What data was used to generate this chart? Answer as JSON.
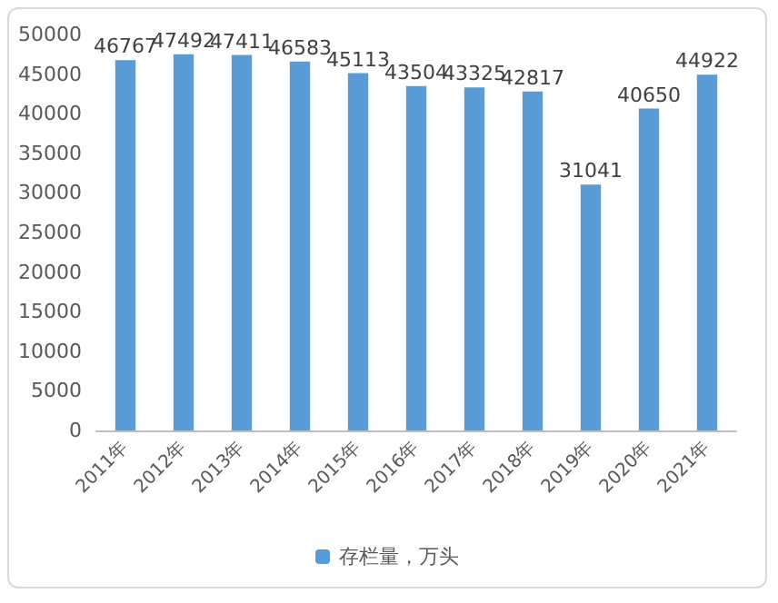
{
  "chart_data": {
    "type": "bar",
    "categories": [
      "2011年",
      "2012年",
      "2013年",
      "2014年",
      "2015年",
      "2016年",
      "2017年",
      "2018年",
      "2019年",
      "2020年",
      "2021年"
    ],
    "series": [
      {
        "name": "存栏量，万头",
        "color": "#5b9bd5",
        "values": [
          46767,
          47492,
          47411,
          46583,
          45113,
          43504,
          43325,
          42817,
          31041,
          40650,
          44922
        ]
      }
    ],
    "ylim": [
      0,
      50000
    ],
    "yticks": [
      0,
      5000,
      10000,
      15000,
      20000,
      25000,
      30000,
      35000,
      40000,
      45000,
      50000
    ],
    "grid": false,
    "legend": "bottom",
    "data_labels": true
  }
}
